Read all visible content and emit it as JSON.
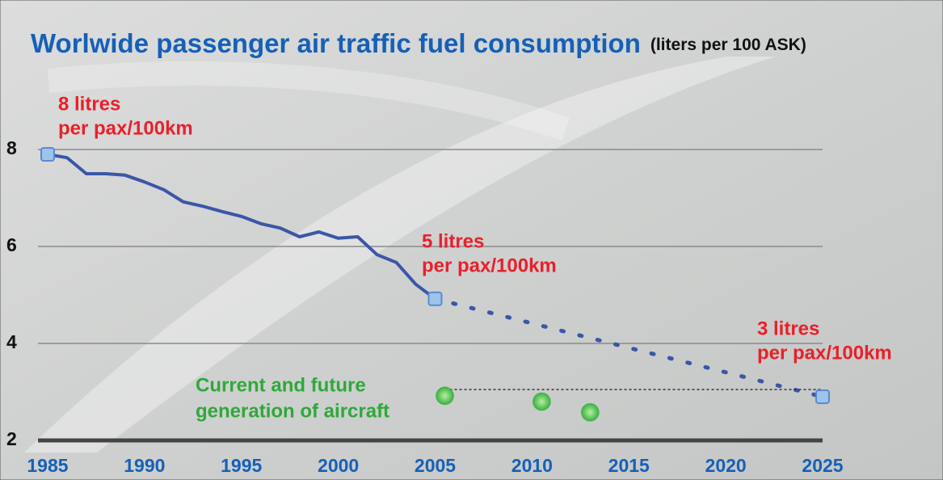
{
  "chart_data": {
    "type": "line",
    "title": "Worlwide passenger air traffic fuel consumption",
    "subtitle": "(liters per 100 ASK)",
    "xlim": [
      1984.5,
      2025
    ],
    "ylim": [
      2,
      9.5
    ],
    "xticks": [
      1985,
      1990,
      1995,
      2000,
      2005,
      2010,
      2015,
      2020,
      2025
    ],
    "yticks": [
      2,
      4,
      6,
      8
    ],
    "grid": true,
    "series": [
      {
        "style": "solid",
        "color": "#3a56a8",
        "x": [
          1985,
          1986,
          1987,
          1988,
          1989,
          1990,
          1991,
          1992,
          1993,
          1994,
          1995,
          1996,
          1997,
          1998,
          1999,
          2000,
          2001,
          2002,
          2003,
          2004,
          2005
        ],
        "values": [
          7.9,
          7.83,
          7.5,
          7.5,
          7.47,
          7.33,
          7.17,
          6.92,
          6.83,
          6.72,
          6.62,
          6.47,
          6.38,
          6.2,
          6.3,
          6.17,
          6.2,
          5.83,
          5.67,
          5.22,
          4.92
        ]
      },
      {
        "style": "dotted",
        "color": "#3a56a8",
        "x": [
          2005,
          2025
        ],
        "values": [
          4.92,
          2.9
        ]
      },
      {
        "style": "dashed-thin",
        "color": "#333333",
        "x": [
          2005.5,
          2025
        ],
        "values": [
          3.05,
          3.05
        ]
      },
      {
        "style": "points",
        "color": "#3cb043",
        "x": [
          2005.5,
          2010.5,
          2013
        ],
        "values": [
          2.92,
          2.8,
          2.58
        ]
      }
    ],
    "annotations": [
      [
        "8 litres",
        "per pax/100km"
      ],
      [
        "5 litres",
        "per pax/100km"
      ],
      [
        "3 litres",
        "per pax/100km"
      ],
      [
        "Current and future",
        "generation of aircraft"
      ]
    ]
  }
}
